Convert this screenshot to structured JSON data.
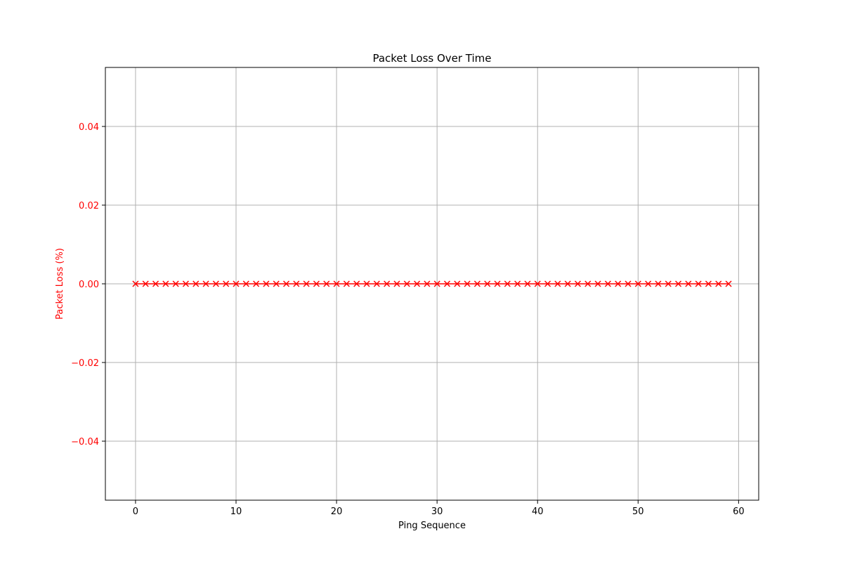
{
  "chart_data": {
    "type": "line",
    "title": "Packet Loss Over Time",
    "xlabel": "Ping Sequence",
    "ylabel": "Packet Loss (%)",
    "xlim": [
      -3,
      62
    ],
    "ylim": [
      -0.055,
      0.055
    ],
    "xticks": [
      0,
      10,
      20,
      30,
      40,
      50,
      60
    ],
    "yticks": [
      -0.04,
      -0.02,
      0.0,
      0.02,
      0.04
    ],
    "ytick_labels": [
      "−0.04",
      "−0.02",
      "0.00",
      "0.02",
      "0.04"
    ],
    "grid": true,
    "legend": "none",
    "colors": {
      "series": "#ff0000",
      "ylabel": "#ff0000",
      "yticks": "#ff0000",
      "grid": "#b0b0b0",
      "axes": "#000000"
    },
    "series": [
      {
        "marker": "x",
        "x": [
          0,
          1,
          2,
          3,
          4,
          5,
          6,
          7,
          8,
          9,
          10,
          11,
          12,
          13,
          14,
          15,
          16,
          17,
          18,
          19,
          20,
          21,
          22,
          23,
          24,
          25,
          26,
          27,
          28,
          29,
          30,
          31,
          32,
          33,
          34,
          35,
          36,
          37,
          38,
          39,
          40,
          41,
          42,
          43,
          44,
          45,
          46,
          47,
          48,
          49,
          50,
          51,
          52,
          53,
          54,
          55,
          56,
          57,
          58,
          59
        ],
        "y": [
          0,
          0,
          0,
          0,
          0,
          0,
          0,
          0,
          0,
          0,
          0,
          0,
          0,
          0,
          0,
          0,
          0,
          0,
          0,
          0,
          0,
          0,
          0,
          0,
          0,
          0,
          0,
          0,
          0,
          0,
          0,
          0,
          0,
          0,
          0,
          0,
          0,
          0,
          0,
          0,
          0,
          0,
          0,
          0,
          0,
          0,
          0,
          0,
          0,
          0,
          0,
          0,
          0,
          0,
          0,
          0,
          0,
          0,
          0,
          0
        ]
      }
    ]
  }
}
